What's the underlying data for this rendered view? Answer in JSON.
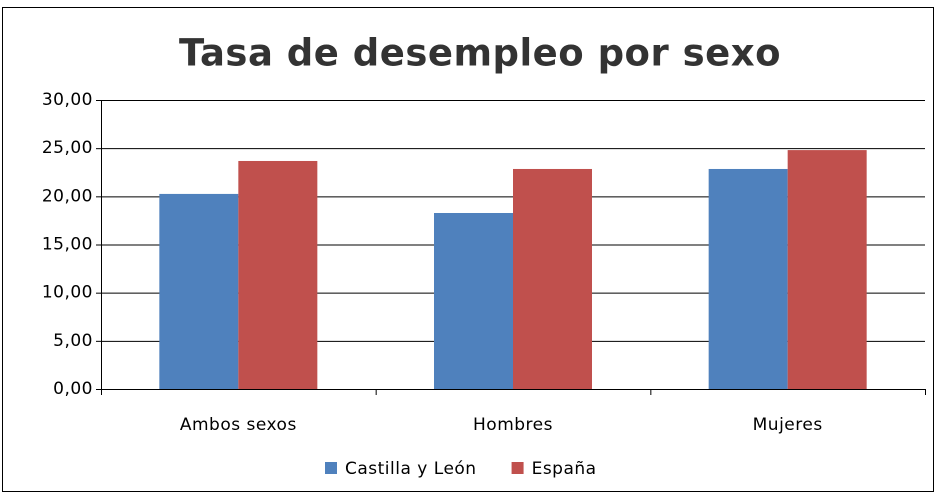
{
  "chart_data": {
    "type": "bar",
    "title": "Tasa de desempleo por sexo",
    "categories": [
      "Ambos sexos",
      "Hombres",
      "Mujeres"
    ],
    "series": [
      {
        "name": "Castilla y León",
        "color": "#4f81bd",
        "values": [
          20.25,
          18.27,
          22.84
        ]
      },
      {
        "name": "España",
        "color": "#c0504d",
        "values": [
          23.67,
          22.84,
          24.8
        ]
      }
    ],
    "ylim": [
      0,
      30
    ],
    "yticks": [
      {
        "value": 0,
        "label": "0,00"
      },
      {
        "value": 5,
        "label": "5,00"
      },
      {
        "value": 10,
        "label": "10,00"
      },
      {
        "value": 15,
        "label": "15,00"
      },
      {
        "value": 20,
        "label": "20,00"
      },
      {
        "value": 25,
        "label": "25,00"
      },
      {
        "value": 30,
        "label": "30,00"
      }
    ],
    "grid": true,
    "legend": "bottom"
  }
}
